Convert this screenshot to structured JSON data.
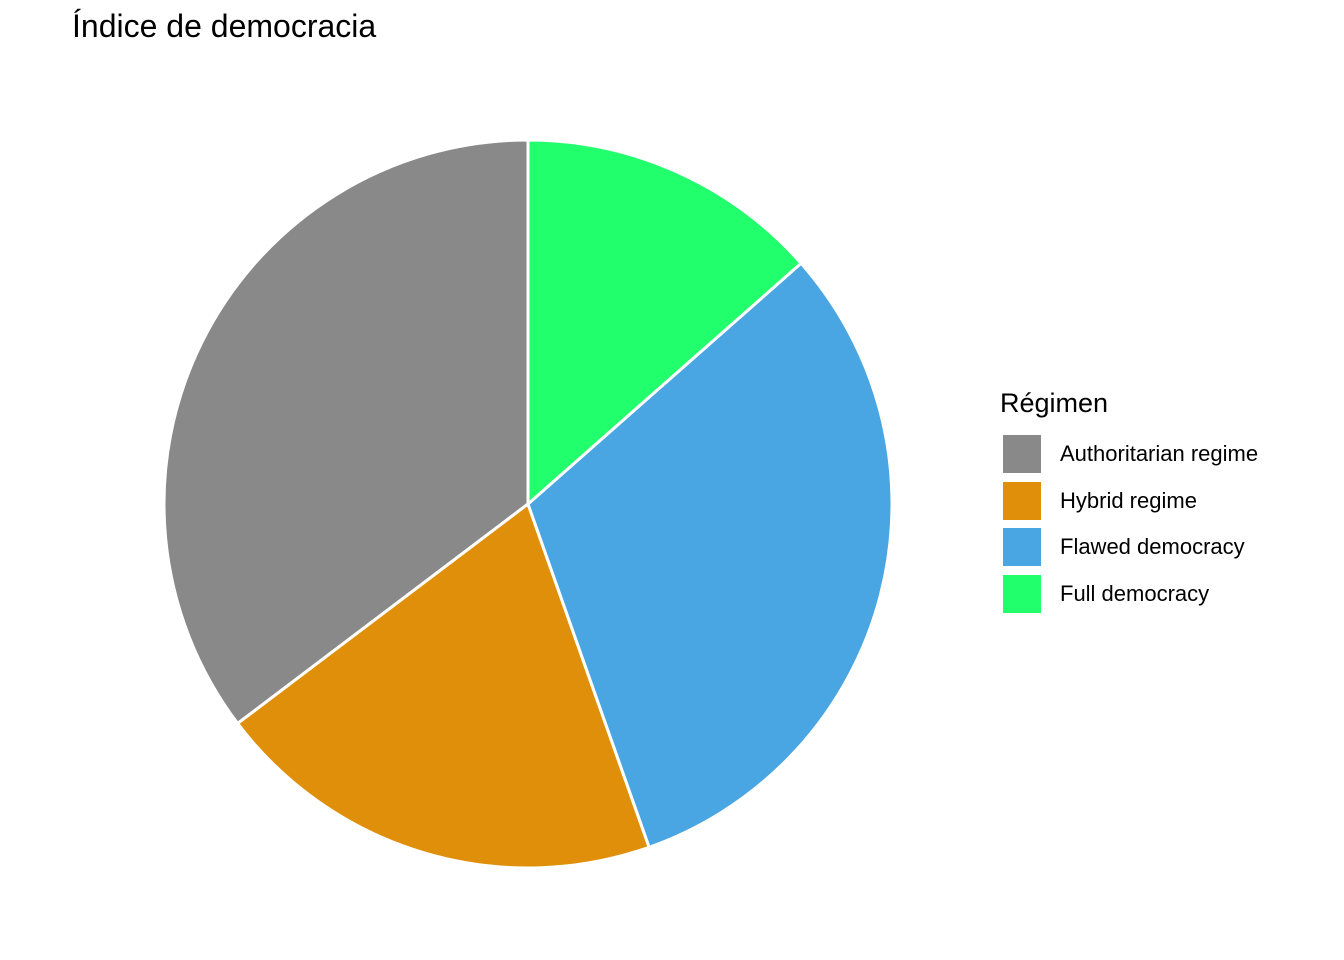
{
  "chart_data": {
    "type": "pie",
    "title": "Índice de democracia",
    "legend": {
      "title": "Régimen",
      "position": "right"
    },
    "categories": [
      "Authoritarian regime",
      "Hybrid regime",
      "Flawed democracy",
      "Full democracy"
    ],
    "values": [
      35.3,
      20.1,
      31.1,
      13.5
    ],
    "colors": [
      "#898989",
      "#DF8F0A",
      "#4AA5E3",
      "#22FF6C"
    ],
    "direction": "counterclockwise",
    "start": "12 o'clock"
  }
}
